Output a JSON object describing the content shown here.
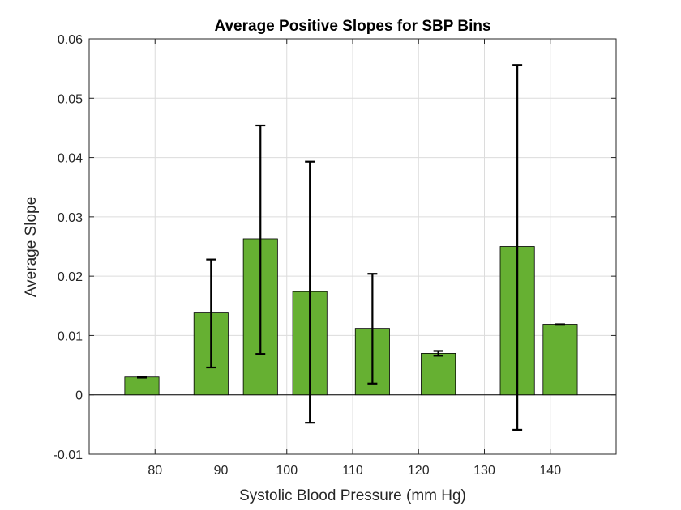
{
  "chart_data": {
    "type": "bar",
    "title": "Average Positive Slopes for SBP Bins",
    "xlabel": "Systolic Blood Pressure (mm Hg)",
    "ylabel": "Average Slope",
    "xlim": [
      70,
      150
    ],
    "ylim": [
      -0.01,
      0.06
    ],
    "xticks": [
      80,
      90,
      100,
      110,
      120,
      130,
      140
    ],
    "yticks": [
      -0.01,
      0,
      0.01,
      0.02,
      0.03,
      0.04,
      0.05,
      0.06
    ],
    "ytick_labels": [
      "-0.01",
      "0",
      "0.01",
      "0.02",
      "0.03",
      "0.04",
      "0.05",
      "0.06"
    ],
    "grid": true,
    "bar_color": "#66b032",
    "bars": [
      {
        "x": 78,
        "value": 0.003,
        "err_low": 0.0029,
        "err_high": 0.003
      },
      {
        "x": 88.5,
        "value": 0.0138,
        "err_low": 0.0046,
        "err_high": 0.0228
      },
      {
        "x": 96,
        "value": 0.0263,
        "err_low": 0.0069,
        "err_high": 0.0454
      },
      {
        "x": 103.5,
        "value": 0.0174,
        "err_low": -0.0047,
        "err_high": 0.0393
      },
      {
        "x": 113,
        "value": 0.0112,
        "err_low": 0.0019,
        "err_high": 0.0204
      },
      {
        "x": 123,
        "value": 0.007,
        "err_low": 0.0066,
        "err_high": 0.0074
      },
      {
        "x": 135,
        "value": 0.025,
        "err_low": -0.0059,
        "err_high": 0.0556
      },
      {
        "x": 141.5,
        "value": 0.0119,
        "err_low": 0.0118,
        "err_high": 0.0119
      }
    ],
    "bar_width": 5.2
  }
}
